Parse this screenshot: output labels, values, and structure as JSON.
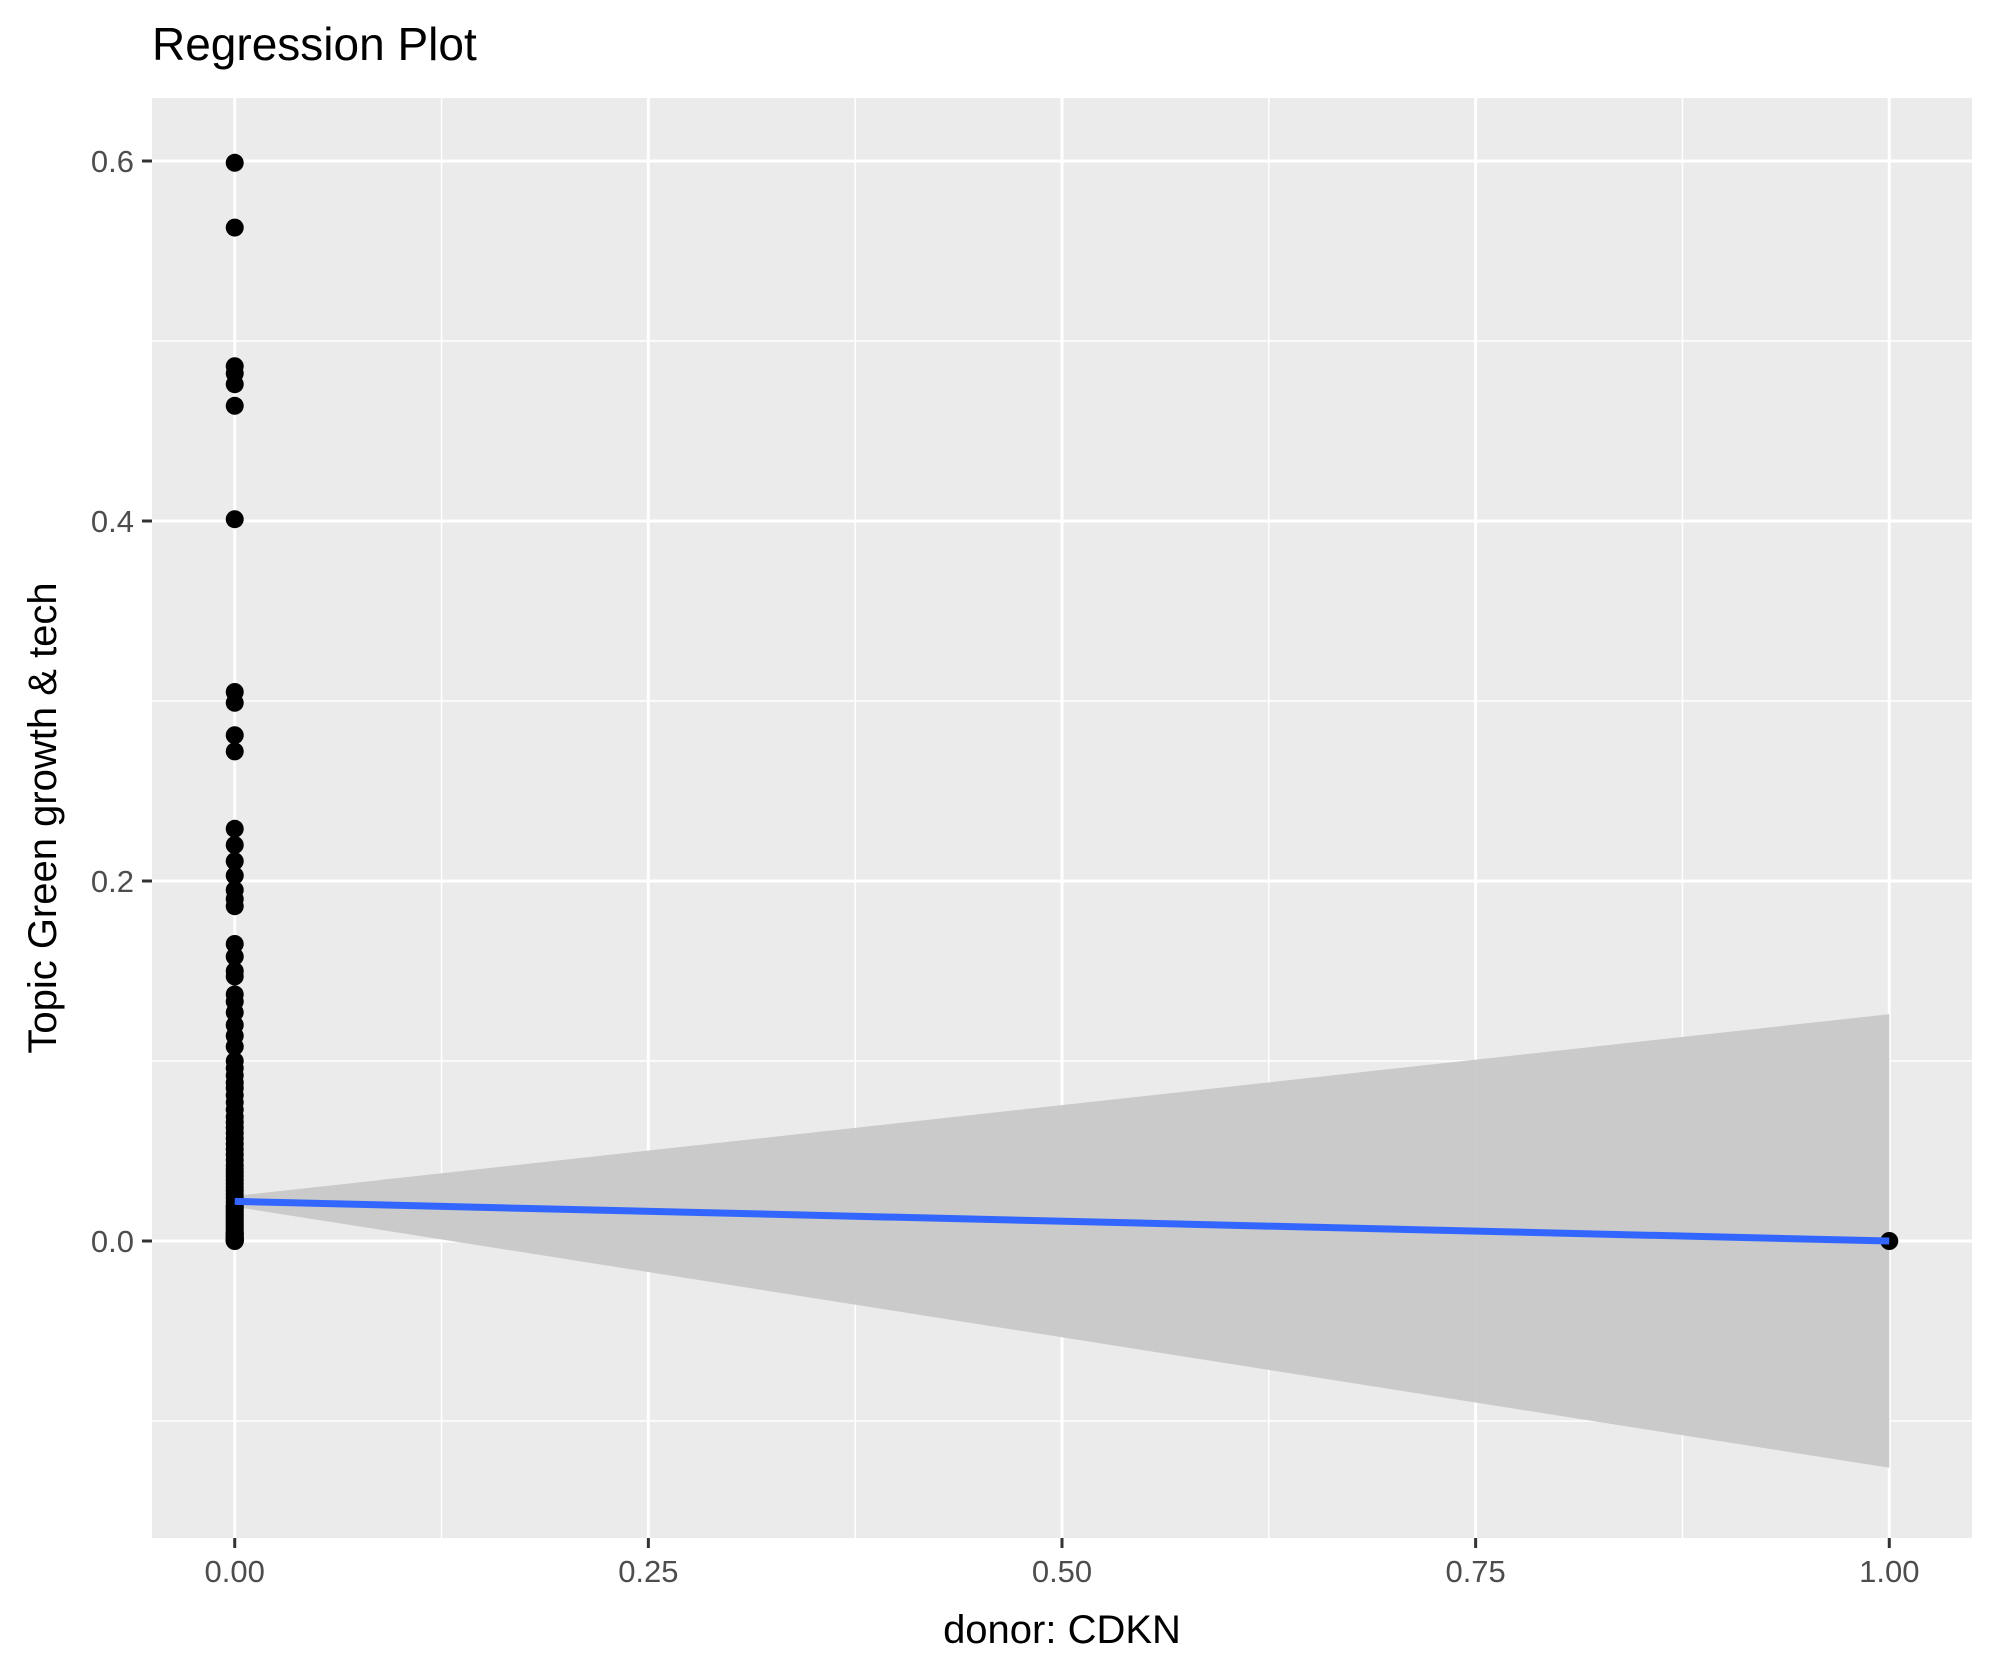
{
  "chart_data": {
    "type": "scatter",
    "title": "Regression Plot",
    "xlabel": "donor: CDKN",
    "ylabel": "Topic Green growth & tech",
    "xlim": [
      -0.05,
      1.05
    ],
    "ylim": [
      -0.165,
      0.635
    ],
    "x_ticks": [
      0.0,
      0.25,
      0.5,
      0.75,
      1.0
    ],
    "x_tick_labels": [
      "0.00",
      "0.25",
      "0.50",
      "0.75",
      "1.00"
    ],
    "y_ticks": [
      0.0,
      0.2,
      0.4,
      0.6
    ],
    "y_tick_labels": [
      "0.0",
      "0.2",
      "0.4",
      "0.6"
    ],
    "x_minor": [
      0.125,
      0.375,
      0.625,
      0.875
    ],
    "y_minor": [
      -0.1,
      0.1,
      0.3,
      0.5
    ],
    "grid": true,
    "colors": {
      "panel": "#ebebeb",
      "points": "#000000",
      "line": "#3366ff",
      "ribbon": "#c8c8c8"
    },
    "points": {
      "x": [
        0,
        0,
        0,
        0,
        0,
        0,
        0,
        0,
        0,
        0,
        0,
        0,
        0,
        0,
        0,
        0,
        0,
        0,
        0,
        0,
        0,
        0,
        0,
        0,
        0,
        0,
        0,
        0,
        0,
        0,
        0,
        0,
        0,
        0,
        0,
        0,
        0,
        0,
        0,
        0,
        0,
        0,
        0,
        0,
        0,
        0,
        0,
        0,
        0,
        0,
        0,
        0,
        0,
        0,
        0,
        0,
        0,
        0,
        0,
        0,
        0,
        0,
        0,
        0,
        0,
        0,
        0,
        0,
        0,
        0,
        0,
        0,
        0,
        0,
        0,
        0,
        0,
        0,
        0,
        0,
        0,
        0,
        0,
        0,
        0,
        0,
        0,
        0,
        1
      ],
      "y": [
        0.599,
        0.563,
        0.486,
        0.482,
        0.476,
        0.464,
        0.401,
        0.305,
        0.299,
        0.281,
        0.272,
        0.229,
        0.22,
        0.211,
        0.203,
        0.195,
        0.19,
        0.186,
        0.165,
        0.158,
        0.15,
        0.147,
        0.137,
        0.133,
        0.127,
        0.12,
        0.114,
        0.108,
        0.1,
        0.096,
        0.092,
        0.088,
        0.085,
        0.081,
        0.077,
        0.073,
        0.069,
        0.066,
        0.063,
        0.06,
        0.057,
        0.054,
        0.051,
        0.048,
        0.045,
        0.042,
        0.04,
        0.038,
        0.036,
        0.034,
        0.032,
        0.03,
        0.028,
        0.026,
        0.024,
        0.022,
        0.02,
        0.019,
        0.018,
        0.017,
        0.016,
        0.015,
        0.014,
        0.013,
        0.012,
        0.011,
        0.01,
        0.009,
        0.008,
        0.007,
        0.006,
        0.005,
        0.0045,
        0.004,
        0.0035,
        0.003,
        0.0025,
        0.002,
        0.0015,
        0.0012,
        0.001,
        0.0008,
        0.0006,
        0.0004,
        0.0003,
        0.0002,
        0.0001,
        0.0,
        0.0
      ]
    },
    "regression_line": {
      "x": [
        0,
        1
      ],
      "y": [
        0.022,
        0.0
      ]
    },
    "confidence_band": {
      "x": [
        0,
        1
      ],
      "lower": [
        0.019,
        -0.126
      ],
      "upper": [
        0.025,
        0.126
      ]
    }
  }
}
